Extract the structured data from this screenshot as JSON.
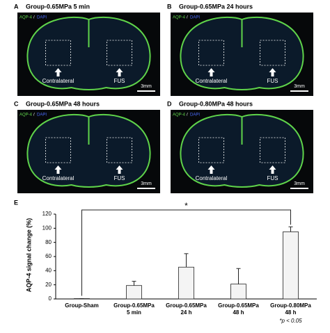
{
  "panels": [
    {
      "letter": "A",
      "title": "Group-0.65MPa 5 min",
      "stain": [
        "AQP-4",
        "/",
        "DAPI"
      ],
      "left_label": "Contralateral",
      "right_label": "FUS",
      "scale": "3mm"
    },
    {
      "letter": "B",
      "title": "Group-0.65MPa 24 hours",
      "stain": [
        "AQP-4",
        "/",
        "DAPI"
      ],
      "left_label": "Contralateral",
      "right_label": "FUS",
      "scale": "3mm"
    },
    {
      "letter": "C",
      "title": "Group-0.65MPa 48 hours",
      "stain": [
        "AQP-4",
        "/",
        "DAPI"
      ],
      "left_label": "Contralateral",
      "right_label": "FUS",
      "scale": "3mm"
    },
    {
      "letter": "D",
      "title": "Group-0.80MPa 48 hours",
      "stain": [
        "AQP-4",
        "/",
        "DAPI"
      ],
      "left_label": "Contralateral",
      "right_label": "FUS",
      "scale": "3mm"
    }
  ],
  "chart_data": {
    "type": "bar",
    "panel_label": "E",
    "y_label": "AQP-4 signal change (%)",
    "categories": [
      [
        "Group-Sham"
      ],
      [
        "Group-0.65MPa",
        "5 min"
      ],
      [
        "Group-0.65MPa",
        "24 h"
      ],
      [
        "Group-0.65MPa",
        "48 h"
      ],
      [
        "Group-0.80MPa",
        "48 h"
      ]
    ],
    "values": [
      0.5,
      19,
      45,
      21,
      95
    ],
    "errors": [
      0,
      6,
      19,
      22,
      7
    ],
    "color": "#f4f4f4",
    "ylim": [
      0,
      120
    ],
    "yticks": [
      0,
      20,
      40,
      60,
      80,
      100,
      120
    ],
    "significance": "*",
    "note": "*p < 0.05"
  }
}
